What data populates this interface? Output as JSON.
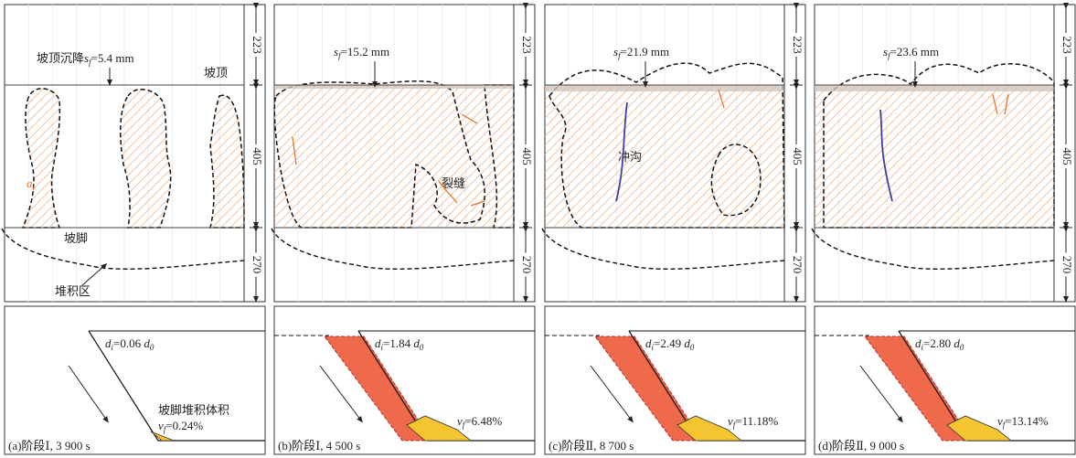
{
  "panels": [
    {
      "caption": "(a)阶段Ⅰ, 3 900 s",
      "dims": [
        223,
        405,
        270
      ],
      "settlement": {
        "prefix": "坡顶沉降",
        "sym": "s",
        "sub": "f",
        "text": "=5.4 mm"
      },
      "crest": "坡顶",
      "toe": "坡脚",
      "deposit": "堆积区",
      "crack": {
        "sym": "a",
        "sub": "i"
      },
      "d": {
        "sym": "d",
        "sub": "i",
        "text": "=0.06 ",
        "unit_sym": "d",
        "unit_sub": "0"
      },
      "v": {
        "prefix": "坡脚堆积体积",
        "sym": "v",
        "sub": "f",
        "text": "=0.24%"
      }
    },
    {
      "caption": "(b)阶段Ⅰ, 4 500 s",
      "dims": [
        223,
        405,
        270
      ],
      "settlement": {
        "sym": "s",
        "sub": "f",
        "text": "=15.2 mm"
      },
      "note": "裂缝",
      "d": {
        "sym": "d",
        "sub": "i",
        "text": "=1.84 ",
        "unit_sym": "d",
        "unit_sub": "0"
      },
      "v": {
        "sym": "v",
        "sub": "f",
        "text": "=6.48%"
      }
    },
    {
      "caption": "(c)阶段Ⅱ, 8 700 s",
      "dims": [
        223,
        405,
        270
      ],
      "settlement": {
        "sym": "s",
        "sub": "f",
        "text": "=21.9 mm"
      },
      "note": "冲沟",
      "d": {
        "sym": "d",
        "sub": "i",
        "text": "=2.49 ",
        "unit_sym": "d",
        "unit_sub": "0"
      },
      "v": {
        "sym": "v",
        "sub": "f",
        "text": "=11.18%"
      }
    },
    {
      "caption": "(d)阶段Ⅱ, 9 000 s",
      "dims": [
        223,
        405,
        270
      ],
      "settlement": {
        "sym": "s",
        "sub": "f",
        "text": "=23.6 mm"
      },
      "d": {
        "sym": "d",
        "sub": "i",
        "text": "=2.80 ",
        "unit_sym": "d",
        "unit_sub": "0"
      },
      "v": {
        "sym": "v",
        "sub": "f",
        "text": "=13.14%"
      }
    }
  ]
}
